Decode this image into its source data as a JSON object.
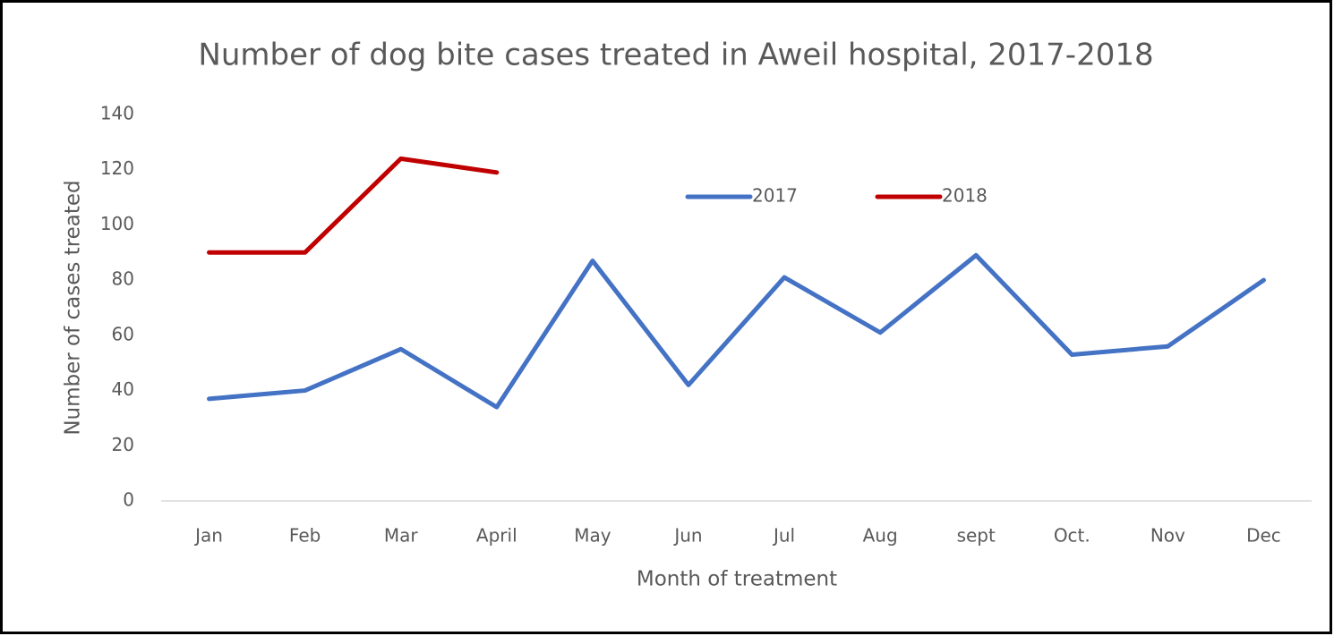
{
  "chart_data": {
    "type": "line",
    "title": "Number of dog bite cases treated in Aweil hospital, 2017-2018",
    "x_label": "Month of treatment",
    "y_label": "Number of cases treated",
    "categories": [
      "Jan",
      "Feb",
      "Mar",
      "April",
      "May",
      "Jun",
      "Jul",
      "Aug",
      "sept",
      "Oct.",
      "Nov",
      "Dec"
    ],
    "series": [
      {
        "name": "2017",
        "color": "#4472c4",
        "values": [
          37,
          40,
          55,
          34,
          87,
          42,
          81,
          61,
          89,
          53,
          56,
          80
        ]
      },
      {
        "name": "2018",
        "color": "#c00000",
        "values": [
          90,
          90,
          124,
          119,
          null,
          null,
          null,
          null,
          null,
          null,
          null,
          null
        ]
      }
    ],
    "ylim": [
      0,
      140
    ],
    "yticks": [
      0,
      20,
      40,
      60,
      80,
      100,
      120,
      140
    ],
    "grid": false
  }
}
